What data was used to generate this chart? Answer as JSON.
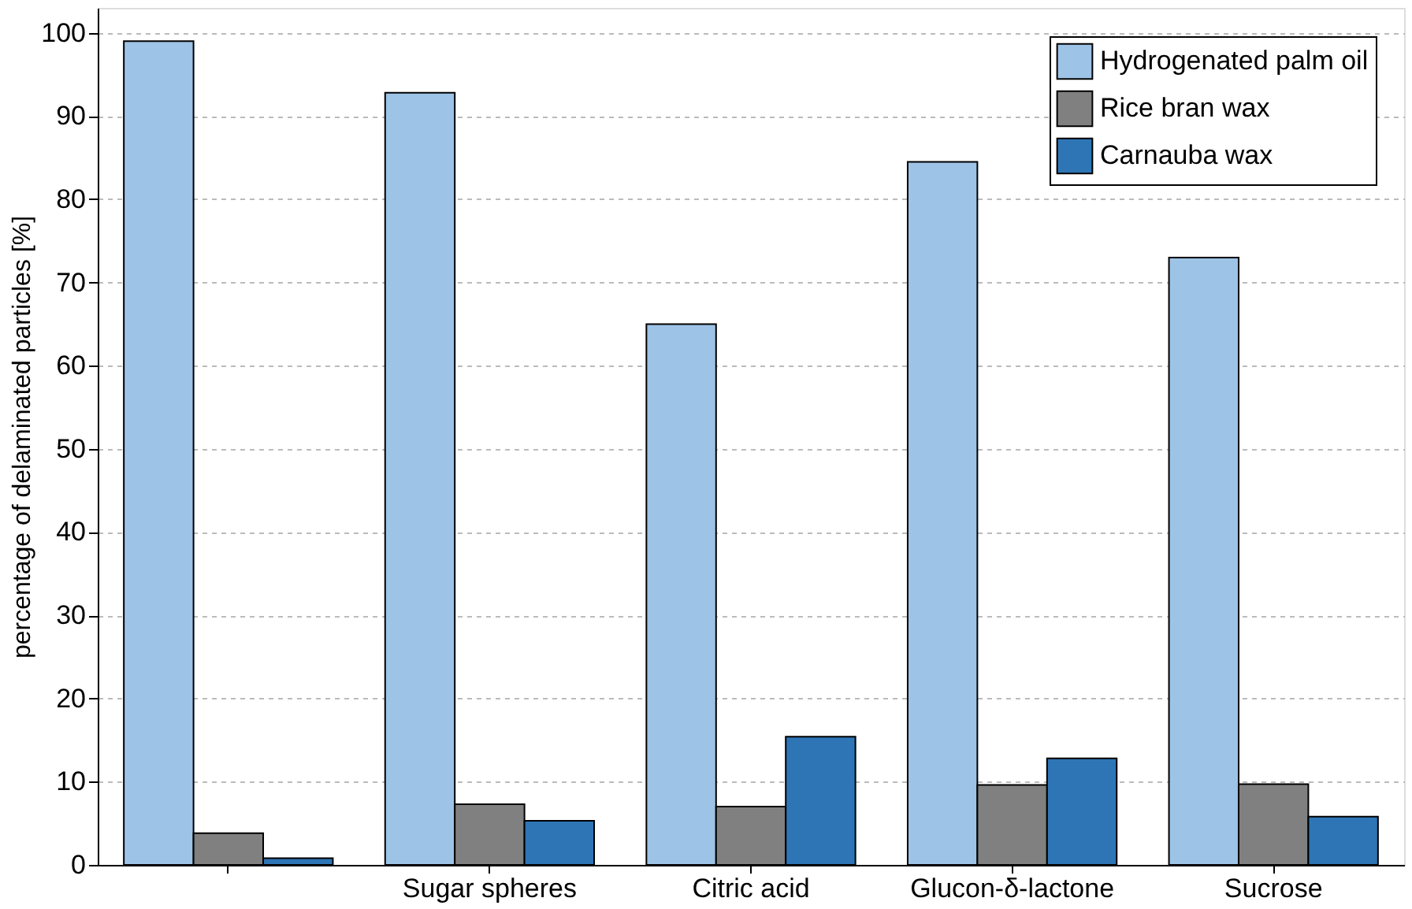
{
  "chart_data": {
    "type": "bar",
    "ylabel": "percentage of delaminated particles [%]",
    "categories": [
      null,
      "Sugar spheres",
      "Citric acid",
      "Glucon-δ-lactone",
      "Sucrose"
    ],
    "series": [
      {
        "name": "Hydrogenated palm oil",
        "color": "#9dc3e6",
        "values": [
          99,
          92.8,
          65,
          84.5,
          73
        ]
      },
      {
        "name": "Rice bran wax",
        "color": "#808080",
        "values": [
          3.8,
          7.3,
          7,
          9.6,
          9.7
        ]
      },
      {
        "name": "Carnauba wax",
        "color": "#2e75b6",
        "values": [
          0.8,
          5.3,
          15.4,
          12.8,
          5.8
        ]
      }
    ],
    "ylim": [
      0,
      103
    ],
    "yticks": [
      0,
      10,
      20,
      30,
      40,
      50,
      60,
      70,
      80,
      90,
      100
    ],
    "grid": "y",
    "legend": "top right"
  }
}
